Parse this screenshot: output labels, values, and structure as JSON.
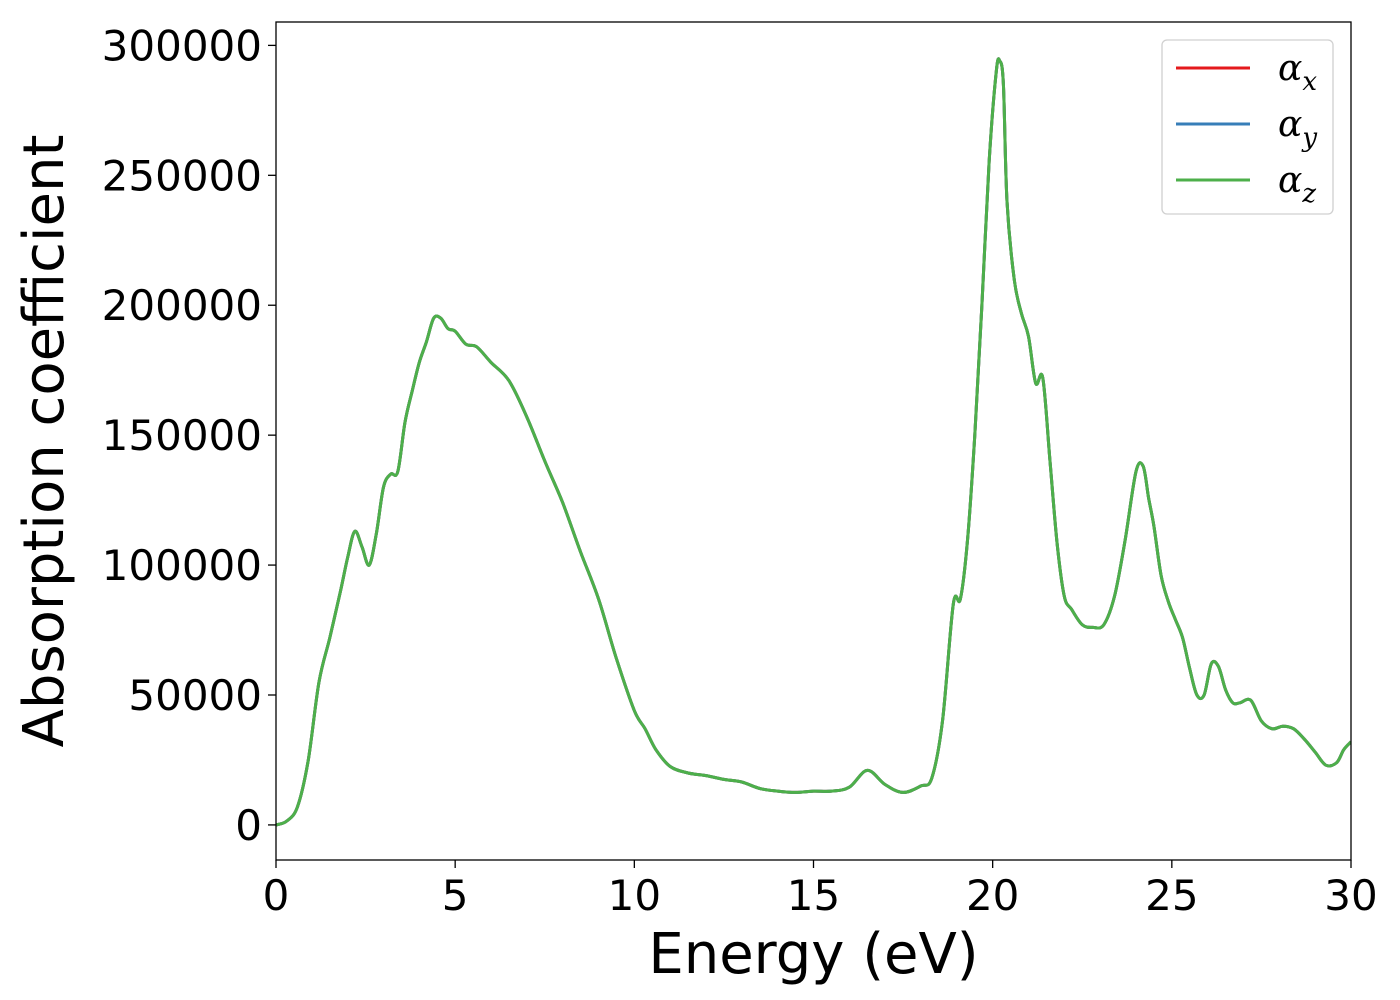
{
  "chart_data": {
    "type": "line",
    "xlabel": "Energy (eV)",
    "ylabel": "Absorption coefficient",
    "xlim": [
      0,
      30
    ],
    "ylim": [
      -13500,
      309000
    ],
    "xticks": [
      0,
      5,
      10,
      15,
      20,
      25,
      30
    ],
    "yticks": [
      0,
      50000,
      100000,
      150000,
      200000,
      250000,
      300000
    ],
    "grid": false,
    "legend_position": "top-right",
    "series": [
      {
        "name": "α",
        "subscript": "x",
        "color": "#e41a1c"
      },
      {
        "name": "α",
        "subscript": "y",
        "color": "#377eb8"
      },
      {
        "name": "α",
        "subscript": "z",
        "color": "#4daf4a"
      }
    ],
    "x": [
      0,
      0.3,
      0.6,
      0.9,
      1.2,
      1.5,
      1.8,
      2.0,
      2.2,
      2.4,
      2.6,
      2.8,
      3.0,
      3.2,
      3.4,
      3.6,
      3.8,
      4.0,
      4.2,
      4.4,
      4.6,
      4.8,
      5.0,
      5.3,
      5.6,
      6.0,
      6.5,
      7.0,
      7.5,
      8.0,
      8.5,
      9.0,
      9.5,
      10.0,
      10.3,
      10.6,
      11.0,
      11.5,
      12.0,
      12.5,
      13.0,
      13.5,
      14.0,
      14.5,
      15.0,
      15.5,
      16.0,
      16.5,
      17.0,
      17.5,
      18.0,
      18.3,
      18.6,
      18.9,
      19.1,
      19.3,
      19.5,
      19.7,
      19.9,
      20.1,
      20.2,
      20.3,
      20.4,
      20.6,
      20.8,
      21.0,
      21.2,
      21.4,
      21.6,
      21.8,
      22.0,
      22.2,
      22.5,
      22.8,
      23.1,
      23.4,
      23.7,
      24.0,
      24.2,
      24.35,
      24.5,
      24.7,
      24.9,
      25.1,
      25.3,
      25.5,
      25.7,
      25.9,
      26.1,
      26.3,
      26.5,
      26.7,
      26.9,
      27.2,
      27.5,
      27.8,
      28.1,
      28.4,
      28.7,
      29.0,
      29.3,
      29.6,
      29.8,
      30.0
    ],
    "values": [
      0,
      1500,
      7000,
      25000,
      55000,
      72000,
      90000,
      103000,
      113000,
      107000,
      100000,
      112000,
      130000,
      135000,
      136000,
      155000,
      167000,
      178000,
      186000,
      195000,
      195000,
      191000,
      190000,
      185000,
      184000,
      178000,
      171000,
      157000,
      140000,
      124000,
      105000,
      87000,
      64000,
      44000,
      37000,
      29000,
      22500,
      20000,
      19000,
      17500,
      16500,
      14000,
      13000,
      12500,
      13000,
      13000,
      14500,
      21000,
      15500,
      12500,
      15000,
      18000,
      40000,
      85000,
      87000,
      110000,
      150000,
      200000,
      255000,
      290000,
      294000,
      285000,
      240000,
      210000,
      197000,
      188000,
      170000,
      172000,
      140000,
      108000,
      88000,
      83000,
      77000,
      76000,
      77000,
      88000,
      110000,
      136000,
      138000,
      126000,
      115000,
      96000,
      86000,
      79000,
      72000,
      60000,
      50000,
      50000,
      62000,
      61000,
      52000,
      47000,
      47000,
      48000,
      40000,
      37000,
      38000,
      37000,
      33000,
      28000,
      23000,
      24000,
      29000,
      32000
    ]
  }
}
